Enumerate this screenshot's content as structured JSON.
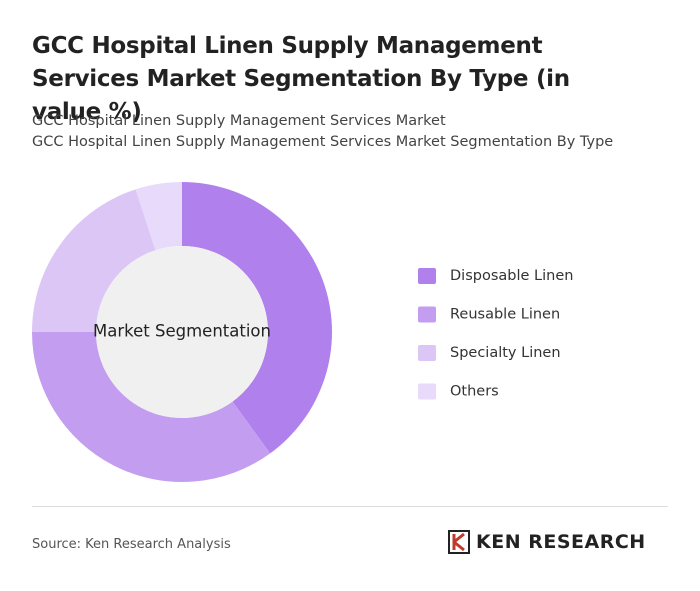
{
  "chart_data": {
    "type": "pie",
    "title": "GCC Hospital Linen Supply Management Services Market Segmentation By Type (in value %)",
    "subtitle": [
      "GCC Hospital Linen Supply Management Services Market",
      "GCC Hospital Linen Supply Management Services Market Segmentation By Type"
    ],
    "center_label": "Market Segmentation",
    "categories": [
      "Disposable Linen",
      "Reusable Linen",
      "Specialty Linen",
      "Others"
    ],
    "values": [
      40,
      35,
      20,
      5
    ],
    "colors": [
      "#b080ec",
      "#c39ef0",
      "#dcc6f6",
      "#e8dafa"
    ],
    "source": "Source: Ken Research Analysis",
    "logo": "KEN RESEARCH"
  }
}
